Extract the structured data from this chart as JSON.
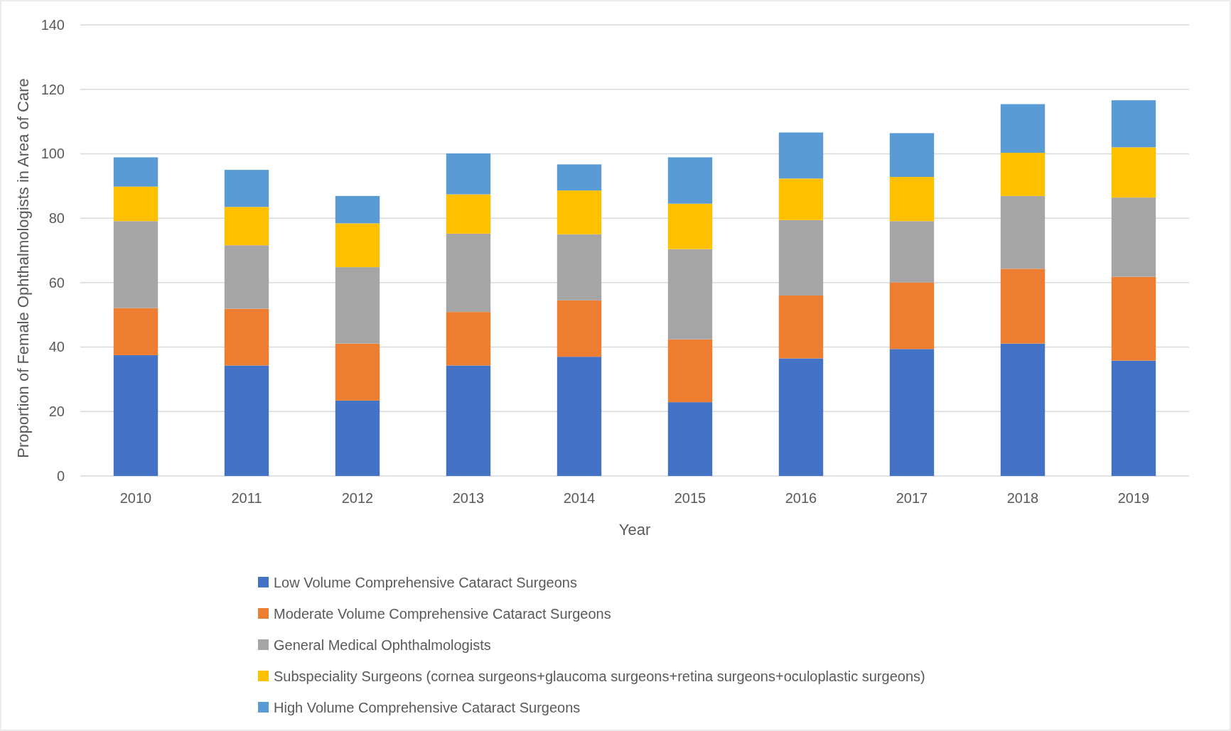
{
  "chart_data": {
    "type": "bar",
    "stacked": true,
    "xlabel": "Year",
    "ylabel": "Proportion of Female Ophthalmologists in Area of Care",
    "categories": [
      "2010",
      "2011",
      "2012",
      "2013",
      "2014",
      "2015",
      "2016",
      "2017",
      "2018",
      "2019"
    ],
    "series": [
      {
        "name": "Low Volume Comprehensive Cataract Surgeons",
        "color": "#4472c4",
        "values": [
          37.5,
          34.3,
          23.4,
          34.3,
          37.0,
          22.9,
          36.5,
          39.4,
          41.1,
          35.8
        ]
      },
      {
        "name": "Moderate Volume Comprehensive Cataract Surgeons",
        "color": "#ed7d31",
        "values": [
          14.6,
          17.6,
          17.7,
          16.6,
          17.5,
          19.5,
          19.5,
          20.7,
          23.2,
          26.0
        ]
      },
      {
        "name": "General Medical Ophthalmologists",
        "color": "#a5a5a5",
        "values": [
          27.0,
          19.7,
          23.7,
          24.3,
          20.5,
          28.0,
          23.4,
          19.0,
          22.6,
          24.6
        ]
      },
      {
        "name": "Subspeciality Surgeons (cornea surgeons+glaucoma surgeons+retina surgeons+oculoplastic surgeons)",
        "color": "#ffc000",
        "values": [
          10.7,
          11.9,
          13.6,
          12.2,
          13.6,
          14.1,
          12.9,
          13.7,
          13.4,
          15.6
        ]
      },
      {
        "name": "High Volume Comprehensive Cataract Surgeons",
        "color": "#5b9bd5",
        "values": [
          9.1,
          11.5,
          8.5,
          12.7,
          8.1,
          14.4,
          14.3,
          13.6,
          15.1,
          14.6
        ]
      }
    ],
    "ylim": [
      0,
      140
    ],
    "yticks": [
      0,
      20,
      40,
      60,
      80,
      100,
      120,
      140
    ],
    "grid": "y",
    "legend": "bottom"
  }
}
